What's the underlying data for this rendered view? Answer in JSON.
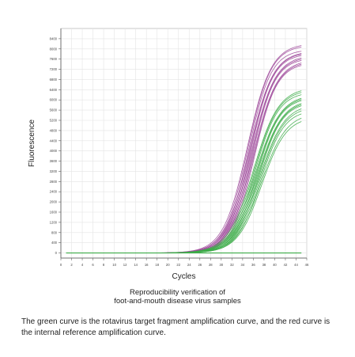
{
  "chart_data": {
    "type": "line",
    "title": "",
    "xlabel": "Cycles",
    "ylabel": "Fluorescence",
    "xlim": [
      0,
      46
    ],
    "ylim": [
      -200,
      8800
    ],
    "x_ticks": [
      0,
      2,
      4,
      6,
      8,
      10,
      12,
      14,
      16,
      18,
      20,
      22,
      24,
      26,
      28,
      30,
      32,
      34,
      36,
      38,
      40,
      42,
      44,
      46
    ],
    "y_ticks": [
      0,
      400,
      800,
      1200,
      1600,
      2000,
      2400,
      2800,
      3200,
      3600,
      4000,
      4400,
      4800,
      5200,
      5600,
      6000,
      6400,
      6800,
      7200,
      7600,
      8000,
      8400
    ],
    "grid": true,
    "x_start": 1,
    "x_end": 45,
    "groups": [
      {
        "color": "#a04c9c",
        "midpoint_cycle": 35.5,
        "slope": 0.46,
        "plateaus": [
          8220,
          8150,
          7980,
          7920,
          7880,
          7820,
          7760,
          7700,
          7640,
          7580,
          7520,
          7460
        ]
      },
      {
        "color": "#3cac48",
        "midpoint_cycle": 36.8,
        "slope": 0.44,
        "plateaus": [
          6500,
          6420,
          6320,
          6220,
          6160,
          6100,
          6040,
          5980,
          5920,
          5850,
          5750,
          5620,
          5500,
          5350
        ]
      }
    ],
    "flat_line": {
      "color": "#3cac48",
      "value": 0
    },
    "caption": [
      "Reproducibility verification of",
      "foot-and-mouth disease virus samples"
    ]
  },
  "description_text": "The green curve is the rotavirus target fragment amplification curve, and the red curve is the internal reference amplification curve."
}
